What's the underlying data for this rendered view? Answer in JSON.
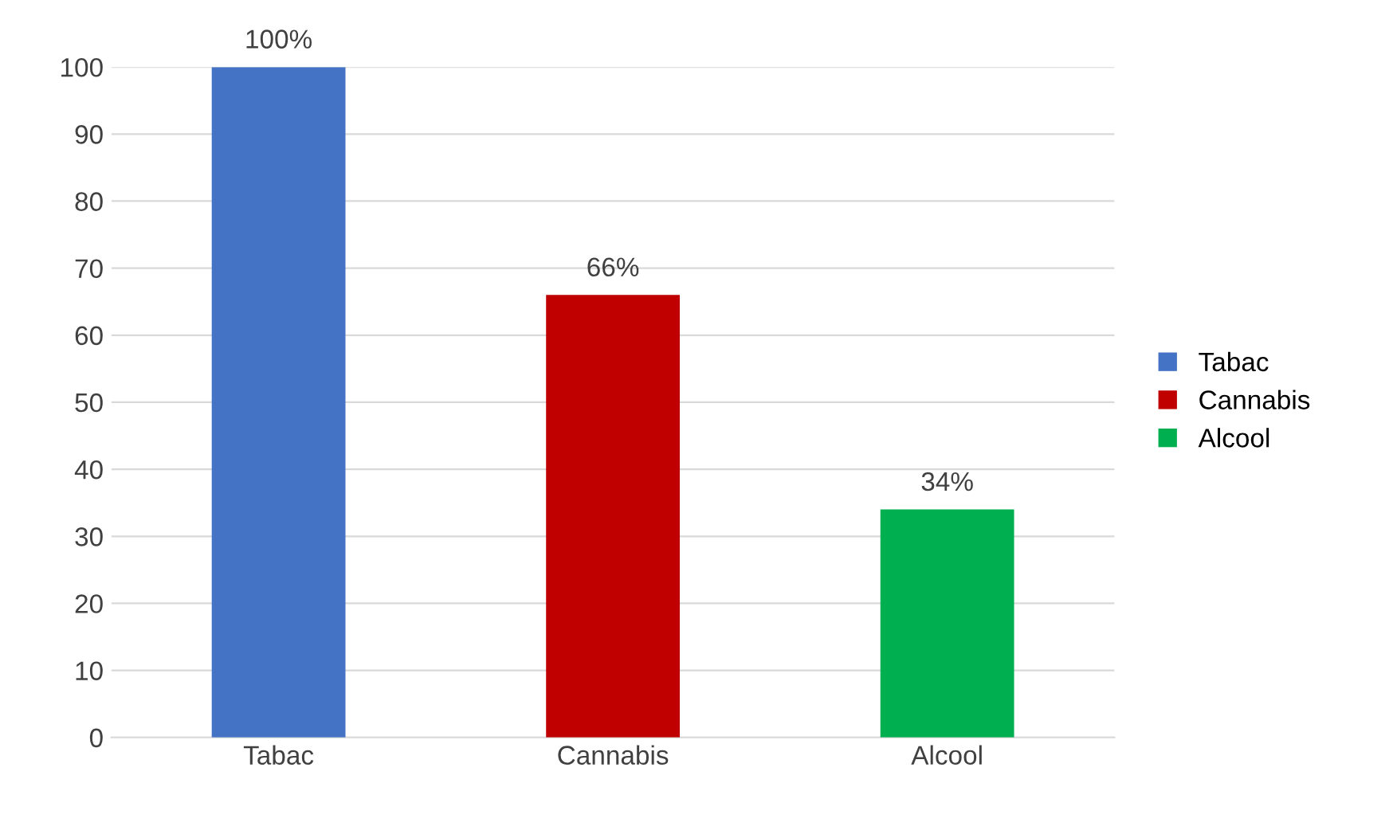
{
  "chart_data": {
    "type": "bar",
    "categories": [
      "Tabac",
      "Cannabis",
      "Alcool"
    ],
    "series": [
      {
        "name": "Tabac",
        "color": "#4472c4",
        "values": [
          100,
          null,
          null
        ],
        "value_labels": [
          "100%",
          null,
          null
        ]
      },
      {
        "name": "Cannabis",
        "color": "#c00000",
        "values": [
          null,
          66,
          null
        ],
        "value_labels": [
          null,
          "66%",
          null
        ]
      },
      {
        "name": "Alcool",
        "color": "#00b050",
        "values": [
          null,
          null,
          34
        ],
        "value_labels": [
          null,
          null,
          "34%"
        ]
      }
    ],
    "ylim": [
      0,
      100
    ],
    "yticks": [
      0,
      10,
      20,
      30,
      40,
      50,
      60,
      70,
      80,
      90,
      100
    ],
    "grid": "y",
    "legend": "right"
  }
}
